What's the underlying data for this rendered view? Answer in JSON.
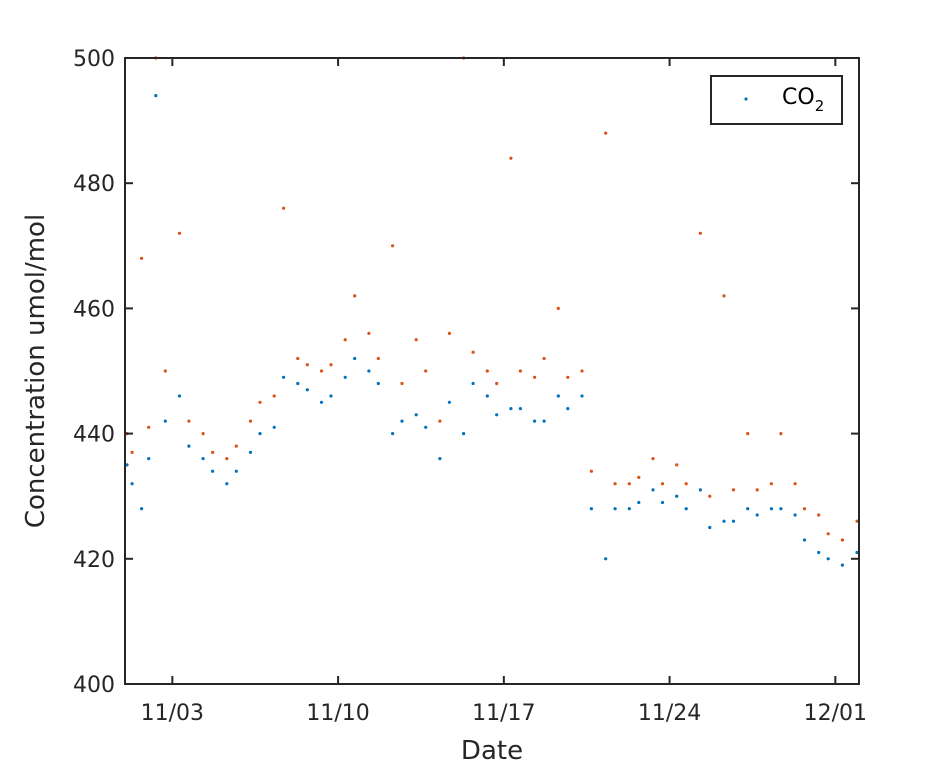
{
  "chart_data": {
    "type": "scatter",
    "title": "",
    "xlabel": "Date",
    "ylabel": "Concentration umol/mol",
    "ylim": [
      400,
      500
    ],
    "xlim": [
      "2023-11-01",
      "2023-12-02"
    ],
    "x_ticks": [
      "11/03",
      "11/10",
      "11/17",
      "11/24",
      "12/01"
    ],
    "y_ticks": [
      "400",
      "420",
      "440",
      "460",
      "480",
      "500"
    ],
    "legend": {
      "position": "top-right",
      "label_main": "CO",
      "label_sub": "2"
    },
    "grid": false,
    "series": [
      {
        "name": "CO2",
        "legend_visible": true,
        "color": "#0072BD",
        "x": [
          "2023-11-01",
          "2023-11-01",
          "2023-11-02",
          "2023-11-02",
          "2023-11-02",
          "2023-11-03",
          "2023-11-03",
          "2023-11-04",
          "2023-11-04",
          "2023-11-05",
          "2023-11-05",
          "2023-11-06",
          "2023-11-06",
          "2023-11-07",
          "2023-11-07",
          "2023-11-08",
          "2023-11-08",
          "2023-11-09",
          "2023-11-09",
          "2023-11-10",
          "2023-11-10",
          "2023-11-11",
          "2023-11-11",
          "2023-11-12",
          "2023-11-12",
          "2023-11-13",
          "2023-11-13",
          "2023-11-14",
          "2023-11-14",
          "2023-11-15",
          "2023-11-15",
          "2023-11-16",
          "2023-11-16",
          "2023-11-17",
          "2023-11-17",
          "2023-11-18",
          "2023-11-18",
          "2023-11-19",
          "2023-11-19",
          "2023-11-20",
          "2023-11-20",
          "2023-11-21",
          "2023-11-21",
          "2023-11-22",
          "2023-11-22",
          "2023-11-23",
          "2023-11-23",
          "2023-11-24",
          "2023-11-24",
          "2023-11-25",
          "2023-11-25",
          "2023-11-26",
          "2023-11-26",
          "2023-11-27",
          "2023-11-27",
          "2023-11-28",
          "2023-11-28",
          "2023-11-29",
          "2023-11-29",
          "2023-11-30",
          "2023-11-30",
          "2023-12-01",
          "2023-12-01",
          "2023-12-02"
        ],
        "y": [
          435,
          432,
          428,
          436,
          494,
          442,
          446,
          438,
          436,
          434,
          432,
          434,
          437,
          440,
          441,
          449,
          448,
          447,
          445,
          446,
          449,
          452,
          450,
          448,
          440,
          442,
          443,
          441,
          436,
          445,
          440,
          448,
          446,
          443,
          444,
          444,
          442,
          442,
          446,
          444,
          446,
          428,
          420,
          428,
          428,
          429,
          431,
          429,
          430,
          428,
          431,
          425,
          426,
          426,
          428,
          427,
          428,
          428,
          427,
          423,
          421,
          420,
          419,
          421
        ]
      },
      {
        "name": "",
        "legend_visible": false,
        "color": "#D95319",
        "x": [
          "2023-11-01",
          "2023-11-01",
          "2023-11-02",
          "2023-11-02",
          "2023-11-02",
          "2023-11-03",
          "2023-11-03",
          "2023-11-04",
          "2023-11-04",
          "2023-11-05",
          "2023-11-05",
          "2023-11-06",
          "2023-11-06",
          "2023-11-07",
          "2023-11-07",
          "2023-11-08",
          "2023-11-08",
          "2023-11-09",
          "2023-11-09",
          "2023-11-10",
          "2023-11-10",
          "2023-11-11",
          "2023-11-11",
          "2023-11-12",
          "2023-11-12",
          "2023-11-13",
          "2023-11-13",
          "2023-11-14",
          "2023-11-14",
          "2023-11-15",
          "2023-11-15",
          "2023-11-16",
          "2023-11-16",
          "2023-11-17",
          "2023-11-17",
          "2023-11-18",
          "2023-11-18",
          "2023-11-19",
          "2023-11-19",
          "2023-11-20",
          "2023-11-20",
          "2023-11-21",
          "2023-11-21",
          "2023-11-22",
          "2023-11-22",
          "2023-11-23",
          "2023-11-23",
          "2023-11-24",
          "2023-11-24",
          "2023-11-25",
          "2023-11-25",
          "2023-11-26",
          "2023-11-26",
          "2023-11-27",
          "2023-11-27",
          "2023-11-28",
          "2023-11-28",
          "2023-11-29",
          "2023-11-29",
          "2023-11-30",
          "2023-11-30",
          "2023-12-01",
          "2023-12-01",
          "2023-12-02"
        ],
        "y": [
          440,
          437,
          468,
          441,
          500,
          450,
          472,
          442,
          440,
          437,
          436,
          438,
          442,
          445,
          446,
          476,
          452,
          451,
          450,
          451,
          455,
          462,
          456,
          452,
          470,
          448,
          455,
          450,
          442,
          456,
          500,
          453,
          450,
          448,
          484,
          450,
          449,
          452,
          460,
          449,
          450,
          434,
          488,
          432,
          432,
          433,
          436,
          432,
          435,
          432,
          472,
          430,
          462,
          431,
          440,
          431,
          432,
          440,
          432,
          428,
          427,
          424,
          423,
          426
        ]
      }
    ]
  }
}
